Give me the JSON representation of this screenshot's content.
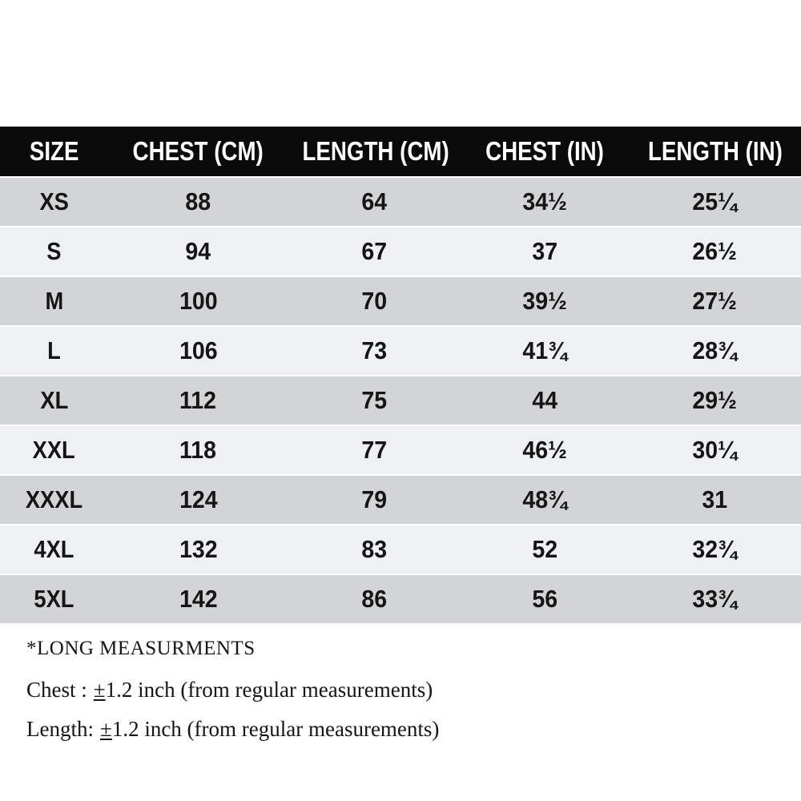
{
  "table": {
    "headers": [
      "SIZE",
      "CHEST (CM)",
      "LENGTH (CM)",
      "CHEST (IN)",
      "LENGTH (IN)"
    ],
    "rows": [
      {
        "size": "XS",
        "chest_cm": "88",
        "length_cm": "64",
        "chest_in": "34½",
        "length_in": "25¼"
      },
      {
        "size": "S",
        "chest_cm": "94",
        "length_cm": "67",
        "chest_in": "37",
        "length_in": "26½"
      },
      {
        "size": "M",
        "chest_cm": "100",
        "length_cm": "70",
        "chest_in": "39½",
        "length_in": "27½"
      },
      {
        "size": "L",
        "chest_cm": "106",
        "length_cm": "73",
        "chest_in": "41¾",
        "length_in": "28¾"
      },
      {
        "size": "XL",
        "chest_cm": "112",
        "length_cm": "75",
        "chest_in": "44",
        "length_in": "29½"
      },
      {
        "size": "XXL",
        "chest_cm": "118",
        "length_cm": "77",
        "chest_in": "46½",
        "length_in": "30¼"
      },
      {
        "size": "XXXL",
        "chest_cm": "124",
        "length_cm": "79",
        "chest_in": "48¾",
        "length_in": "31"
      },
      {
        "size": "4XL",
        "chest_cm": "132",
        "length_cm": "83",
        "chest_in": "52",
        "length_in": "32¾"
      },
      {
        "size": "5XL",
        "chest_cm": "142",
        "length_cm": "86",
        "chest_in": "56",
        "length_in": "33¾"
      }
    ]
  },
  "notes": {
    "title": "*LONG MEASURMENTS",
    "lines": [
      {
        "label": "Chest :",
        "symbol": "±",
        "rest": "1.2 inch (from regular measurements)"
      },
      {
        "label": "Length:",
        "symbol": "±",
        "rest": "1.2 inch (from regular measurements)"
      }
    ]
  },
  "colors": {
    "page_bg": "#ffffff",
    "header_bg": "#0b0b0c",
    "header_text": "#ffffff",
    "row_dark": "#d3d4d6",
    "row_light": "#eef0f3",
    "text": "#151515"
  }
}
